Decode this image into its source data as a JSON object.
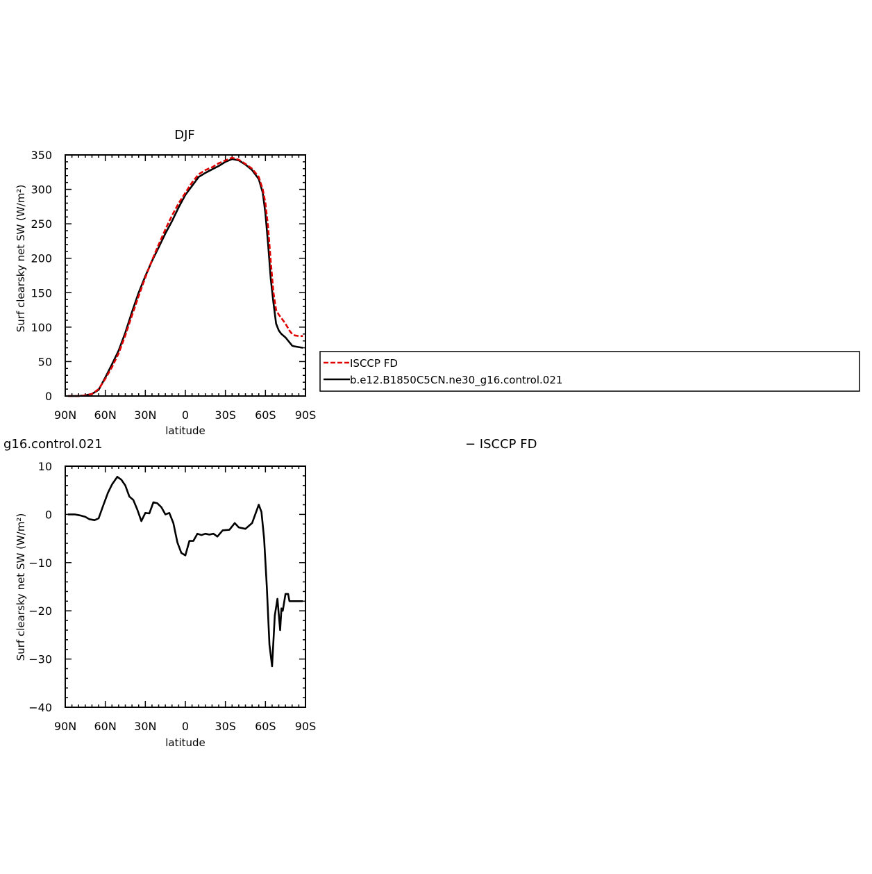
{
  "chart_data": [
    {
      "type": "line",
      "title": "DJF",
      "xlabel": "latitude",
      "ylabel": "Surf clearsky net SW (W/m²)",
      "xlim": [
        -90,
        90
      ],
      "ylim": [
        0,
        350
      ],
      "x_ticks": [
        {
          "value": -90,
          "label": "90N"
        },
        {
          "value": -60,
          "label": "60N"
        },
        {
          "value": -30,
          "label": "30N"
        },
        {
          "value": 0,
          "label": "0"
        },
        {
          "value": 30,
          "label": "30S"
        },
        {
          "value": 60,
          "label": "60S"
        },
        {
          "value": 90,
          "label": "90S"
        }
      ],
      "y_ticks": [
        0,
        50,
        100,
        150,
        200,
        250,
        300,
        350
      ],
      "legend": {
        "placement": "right",
        "entries": [
          "ISCCP FD",
          "b.e12.B1850C5CN.ne30_g16.control.021"
        ]
      },
      "series": [
        {
          "name": "ISCCP FD",
          "color": "#e00000",
          "dash": "dashed",
          "x": [
            -88,
            -85,
            -80,
            -75,
            -70,
            -65,
            -60,
            -55,
            -50,
            -45,
            -40,
            -35,
            -30,
            -25,
            -20,
            -15,
            -10,
            -5,
            0,
            5,
            10,
            15,
            20,
            25,
            30,
            35,
            40,
            45,
            50,
            55,
            58,
            60,
            62,
            64,
            66,
            68,
            70,
            72,
            75,
            78,
            80,
            82,
            85,
            88
          ],
          "y": [
            0,
            0,
            0,
            1,
            3,
            10,
            25,
            42,
            62,
            88,
            117,
            145,
            172,
            197,
            220,
            242,
            262,
            280,
            295,
            310,
            322,
            328,
            332,
            338,
            342,
            346,
            343,
            337,
            330,
            318,
            300,
            280,
            245,
            195,
            150,
            125,
            118,
            113,
            105,
            95,
            90,
            88,
            87,
            87
          ]
        },
        {
          "name": "b.e12.B1850C5CN.ne30_g16.control.021",
          "color": "#000000",
          "dash": "solid",
          "x": [
            -88,
            -85,
            -80,
            -75,
            -70,
            -65,
            -60,
            -55,
            -50,
            -45,
            -40,
            -35,
            -30,
            -25,
            -20,
            -15,
            -10,
            -5,
            0,
            5,
            10,
            15,
            20,
            25,
            30,
            35,
            40,
            45,
            50,
            55,
            58,
            60,
            62,
            64,
            66,
            68,
            70,
            72,
            75,
            78,
            80,
            82,
            85,
            88
          ],
          "y": [
            0,
            0,
            0,
            1,
            3,
            9,
            27,
            46,
            66,
            92,
            122,
            150,
            174,
            196,
            216,
            236,
            254,
            274,
            292,
            305,
            318,
            324,
            329,
            334,
            340,
            344,
            342,
            336,
            328,
            315,
            295,
            265,
            220,
            170,
            135,
            105,
            95,
            90,
            85,
            78,
            73,
            72,
            71,
            70
          ]
        }
      ]
    },
    {
      "type": "line",
      "title": "g16.control.021",
      "subtitle": "− ISCCP FD",
      "xlabel": "latitude",
      "ylabel": "Surf clearsky net SW (W/m²)",
      "xlim": [
        -90,
        90
      ],
      "ylim": [
        -40,
        10
      ],
      "x_ticks": [
        {
          "value": -90,
          "label": "90N"
        },
        {
          "value": -60,
          "label": "60N"
        },
        {
          "value": -30,
          "label": "30N"
        },
        {
          "value": 0,
          "label": "0"
        },
        {
          "value": 30,
          "label": "30S"
        },
        {
          "value": 60,
          "label": "60S"
        },
        {
          "value": 90,
          "label": "90S"
        }
      ],
      "y_ticks": [
        -40,
        -30,
        -20,
        -10,
        0,
        10
      ],
      "series": [
        {
          "name": "",
          "color": "#000000",
          "dash": "solid",
          "x": [
            -88,
            -83,
            -79,
            -75,
            -72,
            -68,
            -65,
            -62,
            -58,
            -55,
            -51,
            -48,
            -45,
            -42,
            -39,
            -36,
            -33,
            -30,
            -27,
            -24,
            -21,
            -18,
            -15,
            -12,
            -9,
            -6,
            -3,
            0,
            3,
            6,
            9,
            12,
            15,
            18,
            21,
            24,
            28,
            33,
            37,
            40,
            45,
            50,
            55,
            57,
            59,
            61,
            63,
            65,
            67,
            69,
            71,
            72,
            73,
            75,
            77,
            78,
            80,
            82,
            84,
            86,
            88
          ],
          "y": [
            0,
            0,
            -0.2,
            -0.5,
            -1,
            -1.2,
            -0.8,
            1.5,
            4.5,
            6.2,
            7.8,
            7.2,
            6,
            3.7,
            3,
            1,
            -1.4,
            0.3,
            0.2,
            2.5,
            2.3,
            1.5,
            0,
            0.3,
            -1.8,
            -5.8,
            -8,
            -8.5,
            -5.5,
            -5.5,
            -4,
            -4.3,
            -4,
            -4.2,
            -4,
            -4.6,
            -3.3,
            -3.2,
            -1.8,
            -2.7,
            -3,
            -1.8,
            2,
            0.5,
            -5,
            -15,
            -27,
            -31.5,
            -21,
            -17.5,
            -24,
            -19.5,
            -20,
            -16.5,
            -16.5,
            -18,
            -18,
            -18,
            -18,
            -18,
            -18
          ]
        }
      ]
    }
  ]
}
